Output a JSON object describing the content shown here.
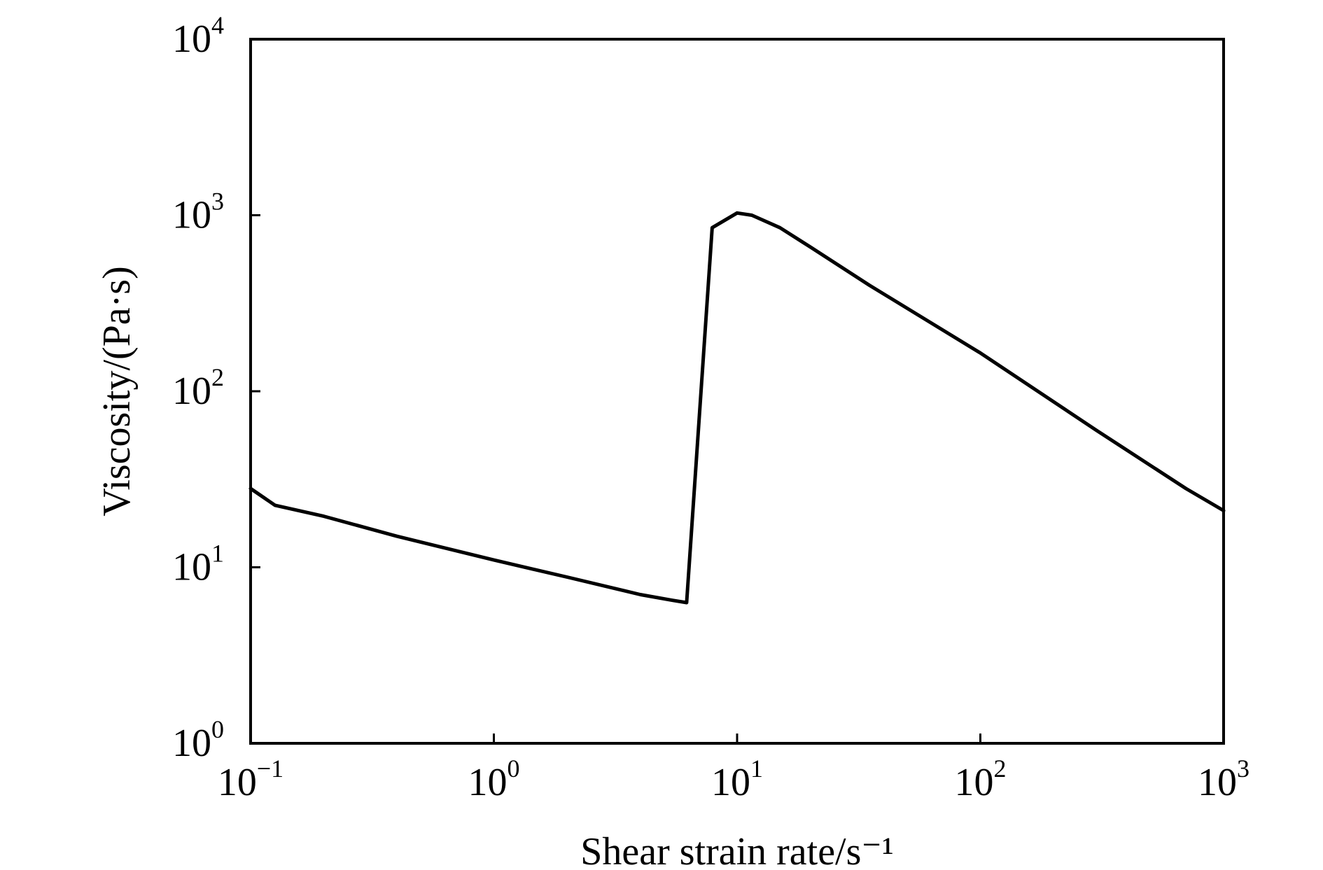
{
  "chart_data": {
    "type": "line",
    "x_scale": "log",
    "y_scale": "log",
    "xlabel": "Shear strain rate/s⁻¹",
    "ylabel": "Viscosity/(Pa·s)",
    "xlim": [
      0.1,
      1000
    ],
    "ylim": [
      1,
      10000
    ],
    "x_ticks": [
      0.1,
      1,
      10,
      100,
      1000
    ],
    "x_tick_labels": [
      {
        "base": "10",
        "exp": "−1"
      },
      {
        "base": "10",
        "exp": "0"
      },
      {
        "base": "10",
        "exp": "1"
      },
      {
        "base": "10",
        "exp": "2"
      },
      {
        "base": "10",
        "exp": "3"
      }
    ],
    "y_ticks": [
      1,
      10,
      100,
      1000,
      10000
    ],
    "y_tick_labels": [
      {
        "base": "10",
        "exp": "0"
      },
      {
        "base": "10",
        "exp": "1"
      },
      {
        "base": "10",
        "exp": "2"
      },
      {
        "base": "10",
        "exp": "3"
      },
      {
        "base": "10",
        "exp": "4"
      }
    ],
    "grid": false,
    "line_color": "#000000",
    "series": [
      {
        "x": [
          0.1,
          0.126,
          0.2,
          0.4,
          1.0,
          2.0,
          4.0,
          5.4,
          6.2,
          7.9,
          10.0,
          11.5,
          15.0,
          20.0,
          35.0,
          100.0,
          300.0,
          700.0,
          1000.0
        ],
        "y": [
          28,
          22.5,
          19.5,
          15,
          11,
          8.8,
          7.0,
          6.5,
          6.3,
          850,
          1030,
          1000,
          850,
          660,
          400,
          165,
          60,
          28,
          21
        ]
      }
    ]
  }
}
